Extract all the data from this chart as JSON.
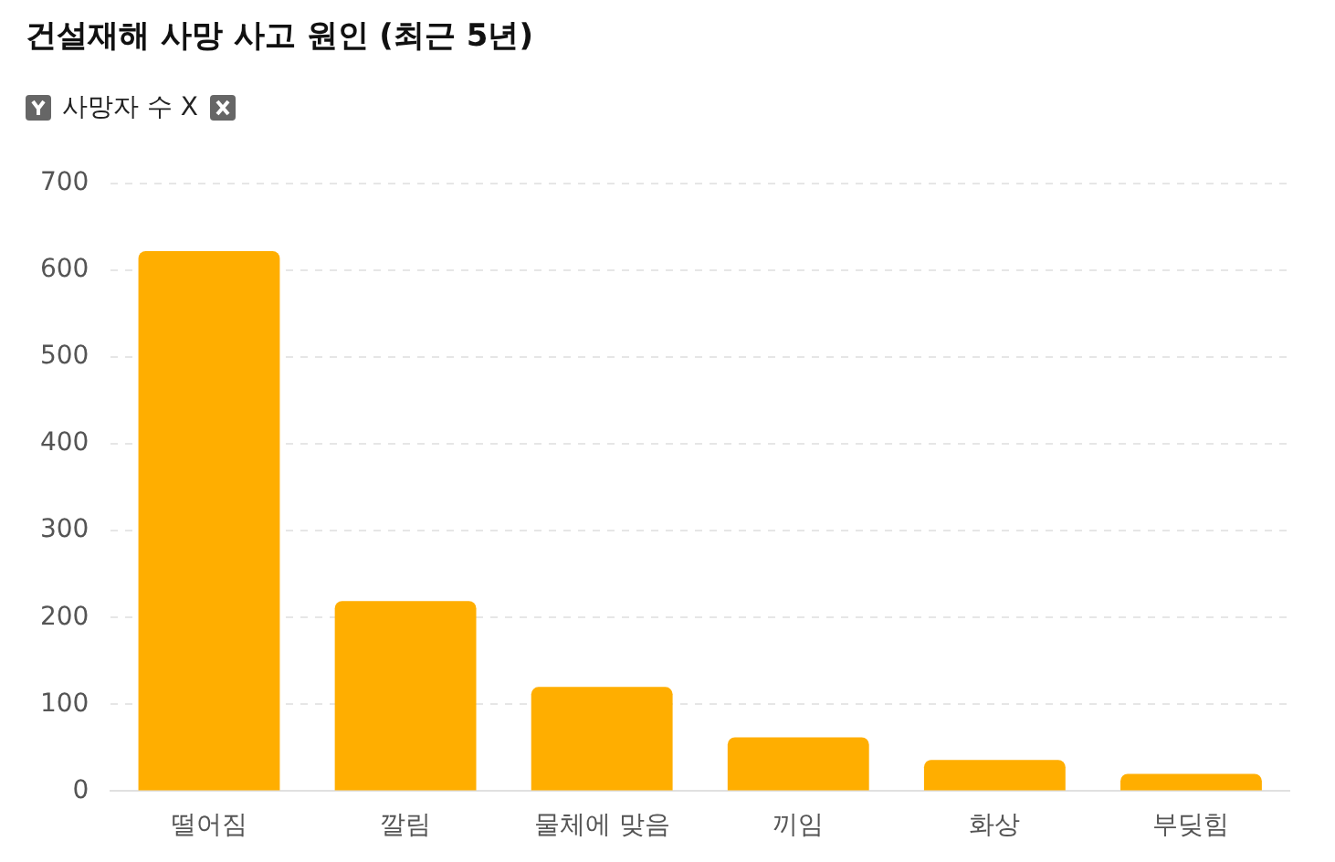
{
  "chart_data": {
    "type": "bar",
    "title": "건설재해 사망 사고 원인 (최근 5년)",
    "ylabel": "사망자 수 X",
    "categories": [
      "떨어짐",
      "깔림",
      "물체에 맞음",
      "끼임",
      "화상",
      "부딪힘"
    ],
    "values": [
      622,
      219,
      120,
      62,
      36,
      20
    ],
    "color": "#ffae00",
    "ylim": [
      0,
      700
    ],
    "yticks": [
      0,
      100,
      200,
      300,
      400,
      500,
      600,
      700
    ],
    "grid": "y",
    "legend": false
  }
}
